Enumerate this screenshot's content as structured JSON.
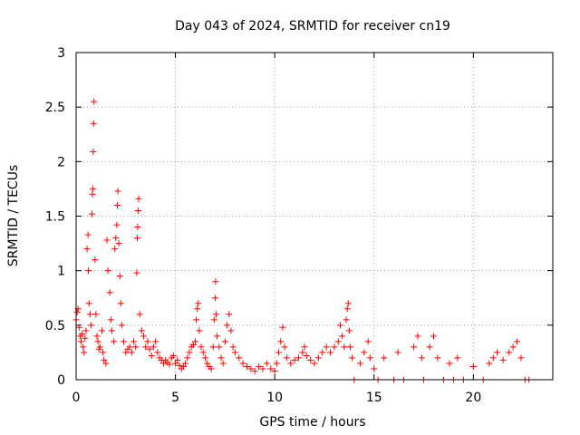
{
  "chart_data": {
    "type": "scatter",
    "title": "Day 043 of 2024, SRMTID for receiver cn19",
    "xlabel": "GPS time / hours",
    "ylabel": "SRMTID / TECUs",
    "xlim": [
      0,
      24
    ],
    "ylim": [
      0,
      3
    ],
    "xticks": [
      0,
      5,
      10,
      15,
      20
    ],
    "xtick_labels": [
      "0",
      "5",
      "10",
      "15",
      "20"
    ],
    "yticks": [
      0,
      0.5,
      1,
      1.5,
      2,
      2.5,
      3
    ],
    "ytick_labels": [
      "0",
      "0.5",
      "1",
      "1.5",
      "2",
      "2.5",
      "3"
    ],
    "grid": true,
    "marker": "+",
    "color": "#ff0000",
    "series": [
      {
        "name": "SRMTID",
        "points": [
          [
            0.0,
            0.55
          ],
          [
            0.05,
            0.62
          ],
          [
            0.1,
            0.65
          ],
          [
            0.15,
            0.48
          ],
          [
            0.2,
            0.4
          ],
          [
            0.25,
            0.35
          ],
          [
            0.3,
            0.42
          ],
          [
            0.35,
            0.3
          ],
          [
            0.4,
            0.25
          ],
          [
            0.45,
            0.38
          ],
          [
            0.5,
            0.45
          ],
          [
            0.55,
            1.2
          ],
          [
            0.6,
            1.33
          ],
          [
            0.62,
            1.0
          ],
          [
            0.65,
            0.7
          ],
          [
            0.7,
            0.6
          ],
          [
            0.75,
            0.5
          ],
          [
            0.8,
            1.52
          ],
          [
            0.82,
            1.7
          ],
          [
            0.84,
            1.75
          ],
          [
            0.86,
            2.09
          ],
          [
            0.88,
            2.35
          ],
          [
            0.9,
            2.55
          ],
          [
            0.95,
            1.1
          ],
          [
            1.0,
            0.6
          ],
          [
            1.05,
            0.4
          ],
          [
            1.1,
            0.35
          ],
          [
            1.15,
            0.28
          ],
          [
            1.2,
            0.3
          ],
          [
            1.3,
            0.45
          ],
          [
            1.35,
            0.25
          ],
          [
            1.4,
            0.18
          ],
          [
            1.5,
            0.15
          ],
          [
            1.55,
            1.28
          ],
          [
            1.6,
            1.0
          ],
          [
            1.7,
            0.8
          ],
          [
            1.75,
            0.55
          ],
          [
            1.8,
            0.45
          ],
          [
            1.9,
            0.35
          ],
          [
            1.95,
            1.2
          ],
          [
            2.0,
            1.3
          ],
          [
            2.05,
            1.42
          ],
          [
            2.08,
            1.6
          ],
          [
            2.1,
            1.73
          ],
          [
            2.15,
            1.25
          ],
          [
            2.2,
            0.95
          ],
          [
            2.25,
            0.7
          ],
          [
            2.3,
            0.5
          ],
          [
            2.4,
            0.35
          ],
          [
            2.5,
            0.25
          ],
          [
            2.6,
            0.28
          ],
          [
            2.7,
            0.3
          ],
          [
            2.8,
            0.25
          ],
          [
            2.9,
            0.35
          ],
          [
            3.0,
            0.3
          ],
          [
            3.05,
            0.98
          ],
          [
            3.08,
            1.3
          ],
          [
            3.1,
            1.4
          ],
          [
            3.12,
            1.55
          ],
          [
            3.15,
            1.66
          ],
          [
            3.2,
            0.6
          ],
          [
            3.3,
            0.45
          ],
          [
            3.4,
            0.4
          ],
          [
            3.5,
            0.3
          ],
          [
            3.6,
            0.35
          ],
          [
            3.7,
            0.28
          ],
          [
            3.8,
            0.22
          ],
          [
            3.9,
            0.3
          ],
          [
            4.0,
            0.35
          ],
          [
            4.1,
            0.25
          ],
          [
            4.2,
            0.2
          ],
          [
            4.3,
            0.18
          ],
          [
            4.4,
            0.15
          ],
          [
            4.5,
            0.18
          ],
          [
            4.6,
            0.16
          ],
          [
            4.7,
            0.14
          ],
          [
            4.8,
            0.2
          ],
          [
            4.9,
            0.22
          ],
          [
            5.0,
            0.15
          ],
          [
            5.1,
            0.18
          ],
          [
            5.2,
            0.13
          ],
          [
            5.3,
            0.1
          ],
          [
            5.4,
            0.12
          ],
          [
            5.5,
            0.15
          ],
          [
            5.6,
            0.2
          ],
          [
            5.7,
            0.25
          ],
          [
            5.8,
            0.3
          ],
          [
            5.9,
            0.32
          ],
          [
            6.0,
            0.35
          ],
          [
            6.05,
            0.55
          ],
          [
            6.1,
            0.65
          ],
          [
            6.15,
            0.7
          ],
          [
            6.2,
            0.45
          ],
          [
            6.3,
            0.3
          ],
          [
            6.4,
            0.25
          ],
          [
            6.5,
            0.2
          ],
          [
            6.6,
            0.15
          ],
          [
            6.7,
            0.12
          ],
          [
            6.8,
            0.1
          ],
          [
            6.9,
            0.3
          ],
          [
            6.95,
            0.55
          ],
          [
            7.0,
            0.75
          ],
          [
            7.02,
            0.9
          ],
          [
            7.05,
            0.6
          ],
          [
            7.1,
            0.4
          ],
          [
            7.2,
            0.3
          ],
          [
            7.3,
            0.2
          ],
          [
            7.4,
            0.15
          ],
          [
            7.5,
            0.35
          ],
          [
            7.6,
            0.5
          ],
          [
            7.7,
            0.6
          ],
          [
            7.8,
            0.45
          ],
          [
            7.9,
            0.3
          ],
          [
            8.0,
            0.25
          ],
          [
            8.2,
            0.2
          ],
          [
            8.4,
            0.15
          ],
          [
            8.6,
            0.12
          ],
          [
            8.8,
            0.1
          ],
          [
            9.0,
            0.08
          ],
          [
            9.2,
            0.12
          ],
          [
            9.4,
            0.1
          ],
          [
            9.6,
            0.15
          ],
          [
            9.8,
            0.1
          ],
          [
            10.0,
            0.08
          ],
          [
            10.1,
            0.15
          ],
          [
            10.2,
            0.25
          ],
          [
            10.3,
            0.35
          ],
          [
            10.4,
            0.48
          ],
          [
            10.5,
            0.3
          ],
          [
            10.6,
            0.2
          ],
          [
            10.8,
            0.15
          ],
          [
            11.0,
            0.18
          ],
          [
            11.2,
            0.2
          ],
          [
            11.4,
            0.25
          ],
          [
            11.5,
            0.3
          ],
          [
            11.6,
            0.22
          ],
          [
            11.8,
            0.18
          ],
          [
            12.0,
            0.15
          ],
          [
            12.2,
            0.2
          ],
          [
            12.4,
            0.25
          ],
          [
            12.6,
            0.3
          ],
          [
            12.8,
            0.25
          ],
          [
            13.0,
            0.3
          ],
          [
            13.2,
            0.35
          ],
          [
            13.3,
            0.5
          ],
          [
            13.4,
            0.4
          ],
          [
            13.5,
            0.3
          ],
          [
            13.6,
            0.55
          ],
          [
            13.65,
            0.65
          ],
          [
            13.7,
            0.7
          ],
          [
            13.75,
            0.45
          ],
          [
            13.8,
            0.3
          ],
          [
            13.9,
            0.2
          ],
          [
            14.0,
            0.0
          ],
          [
            14.3,
            0.15
          ],
          [
            14.5,
            0.25
          ],
          [
            14.7,
            0.35
          ],
          [
            14.8,
            0.2
          ],
          [
            15.0,
            0.1
          ],
          [
            15.2,
            0.0
          ],
          [
            15.5,
            0.2
          ],
          [
            16.0,
            0.0
          ],
          [
            16.2,
            0.25
          ],
          [
            16.5,
            0.0
          ],
          [
            17.0,
            0.3
          ],
          [
            17.2,
            0.4
          ],
          [
            17.4,
            0.2
          ],
          [
            17.5,
            0.0
          ],
          [
            17.8,
            0.3
          ],
          [
            18.0,
            0.4
          ],
          [
            18.2,
            0.2
          ],
          [
            18.5,
            0.0
          ],
          [
            18.8,
            0.15
          ],
          [
            19.0,
            0.0
          ],
          [
            19.2,
            0.2
          ],
          [
            19.5,
            0.0
          ],
          [
            20.0,
            0.12
          ],
          [
            20.5,
            0.0
          ],
          [
            20.8,
            0.15
          ],
          [
            21.0,
            0.2
          ],
          [
            21.2,
            0.25
          ],
          [
            21.5,
            0.18
          ],
          [
            21.8,
            0.25
          ],
          [
            22.0,
            0.3
          ],
          [
            22.2,
            0.35
          ],
          [
            22.4,
            0.2
          ],
          [
            22.6,
            0.0
          ],
          [
            22.8,
            0.0
          ]
        ]
      }
    ]
  }
}
